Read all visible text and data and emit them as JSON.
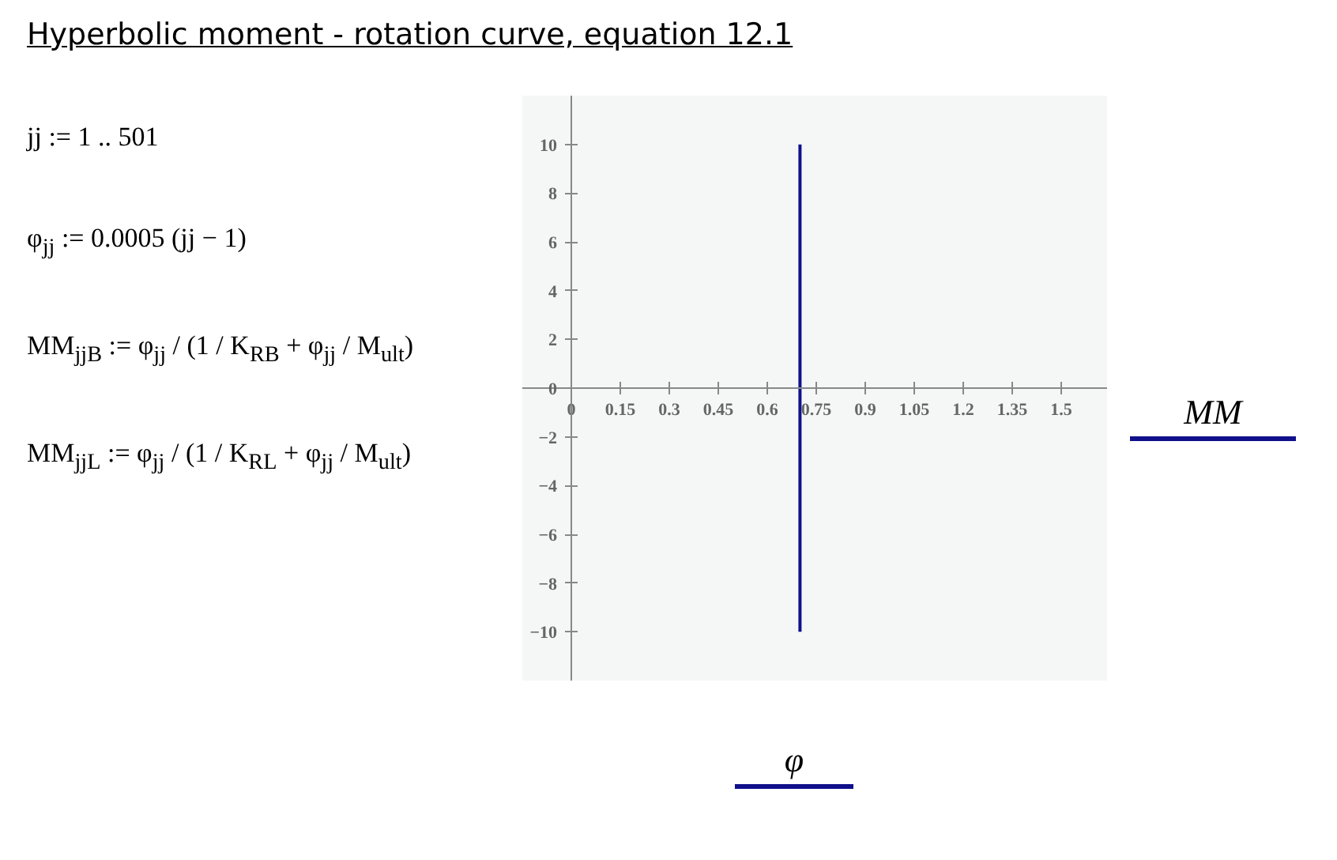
{
  "chart_data": {
    "type": "line",
    "title": "Hyperbolic moment - rotation curve, equation 12.1",
    "xlabel": "φ",
    "ylabel": "MM",
    "annotations": [
      "jj := 1 .. 501",
      "φ$_{jj}$ := 0.0005 (jj − 1)",
      "MM$_{jjB}$ := φ$_{jj}$ / (1 / K$_{RB}$ + φ$_{jj}$ / M$_{ult}$)",
      "MM$_{jjL}$ := φ$_{jj}$ / (1 / K$_{RL}$ + φ$_{jj}$ / M$_{ult}$)"
    ],
    "x": [
      0.7,
      0.7
    ],
    "series": [
      {
        "color": "#10108c",
        "values": [
          -10,
          10
        ]
      }
    ],
    "xlim": [
      -0.15,
      1.64
    ],
    "ylim": [
      -12,
      12
    ],
    "xticks": [
      0,
      0.15,
      0.3,
      0.45,
      0.6,
      0.75,
      0.9,
      1.05,
      1.2,
      1.35,
      1.5
    ],
    "yticks": [
      {
        "value": -10,
        "label": "−10"
      },
      {
        "value": -8,
        "label": "−8"
      },
      {
        "value": -6,
        "label": "−6"
      },
      {
        "value": -4,
        "label": "−4"
      },
      {
        "value": -2,
        "label": "−2"
      },
      0,
      2,
      4,
      6,
      8,
      10
    ],
    "marker": "none",
    "line_style": "solid"
  }
}
